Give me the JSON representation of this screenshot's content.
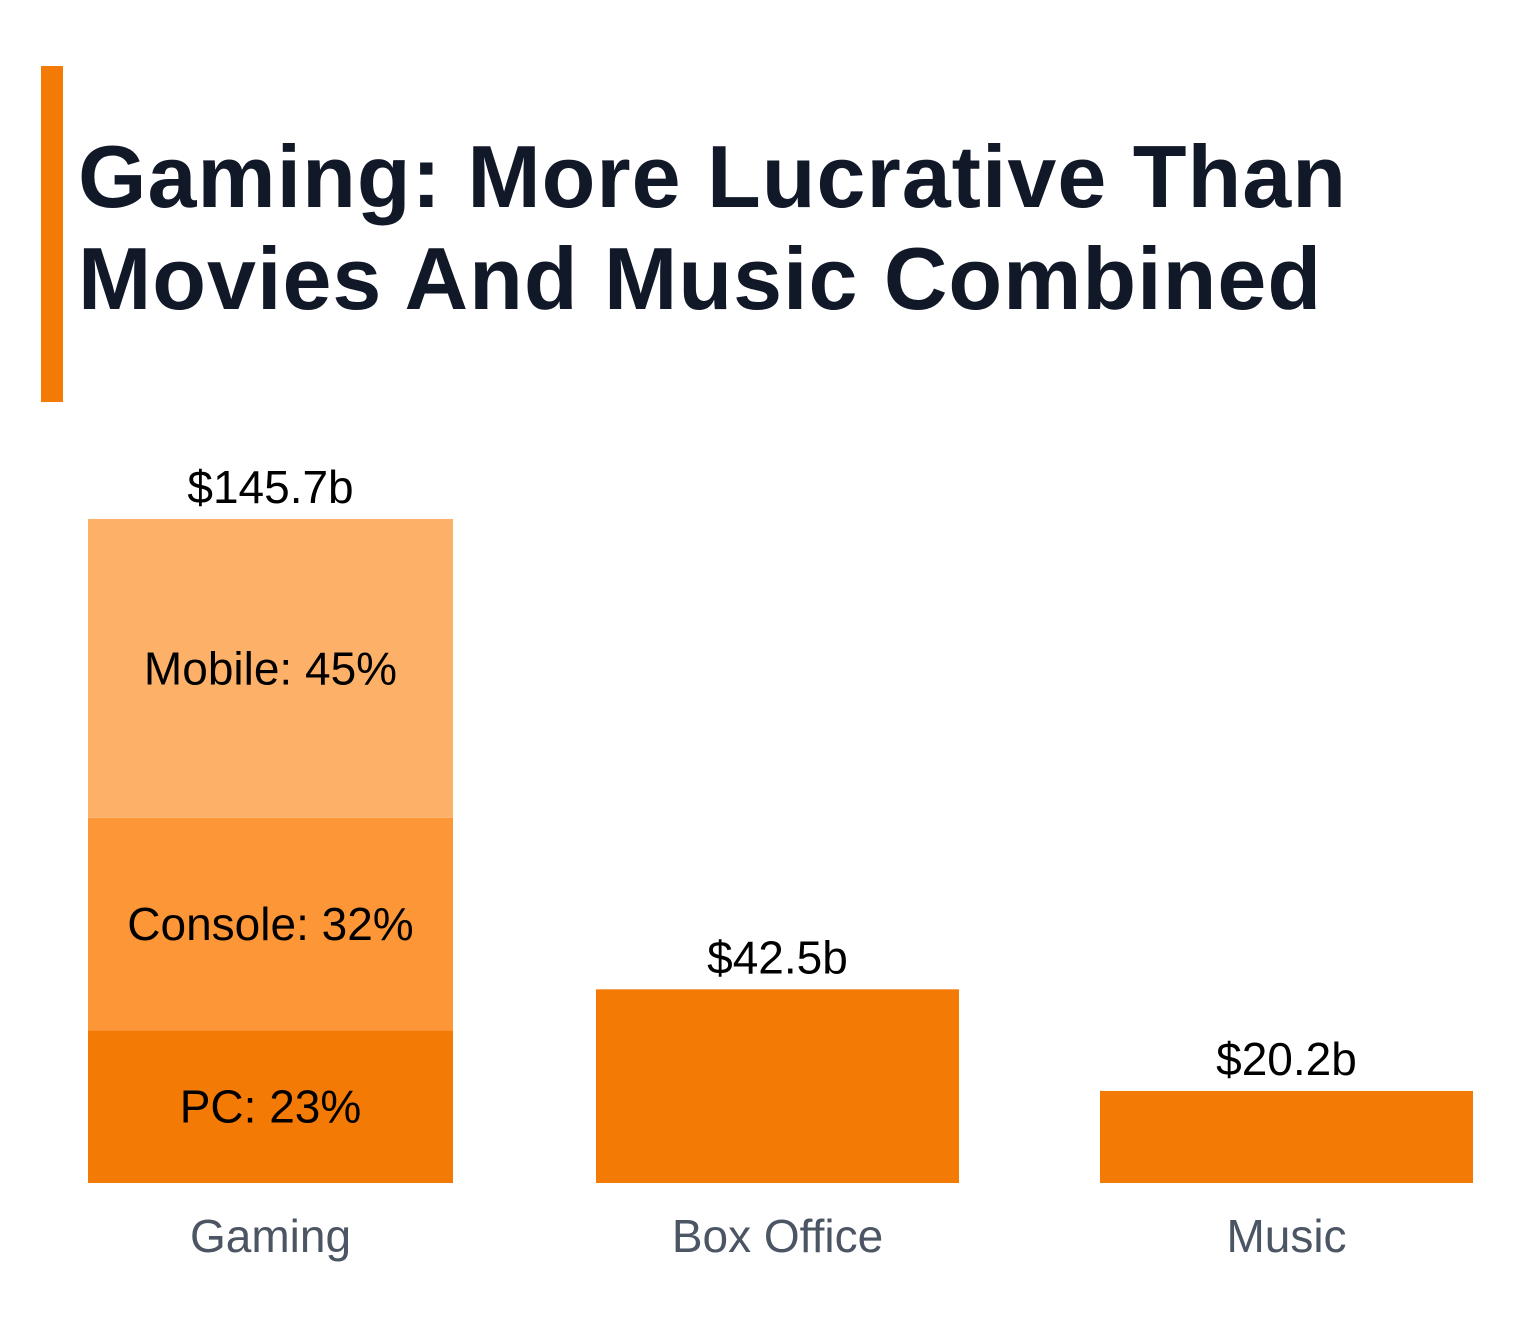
{
  "title_lines": [
    "Gaming: More Lucrative Than",
    "Movies And Music Combined"
  ],
  "colors": {
    "accent": "#f47a06",
    "mobile": "#fdb068",
    "console": "#fd9636",
    "pc": "#f47a06",
    "bar": "#f47a06"
  },
  "chart_data": {
    "type": "bar",
    "categories": [
      "Gaming",
      "Box Office",
      "Music"
    ],
    "values": [
      145.7,
      42.5,
      20.2
    ],
    "value_labels": [
      "$145.7b",
      "$42.5b",
      "$20.2b"
    ],
    "gaming_breakdown": [
      {
        "name": "PC",
        "percent": 23,
        "label": "PC: 23%"
      },
      {
        "name": "Console",
        "percent": 32,
        "label": "Console: 32%"
      },
      {
        "name": "Mobile",
        "percent": 45,
        "label": "Mobile: 45%"
      }
    ],
    "xlabel": "",
    "ylabel": "",
    "grid": false
  }
}
